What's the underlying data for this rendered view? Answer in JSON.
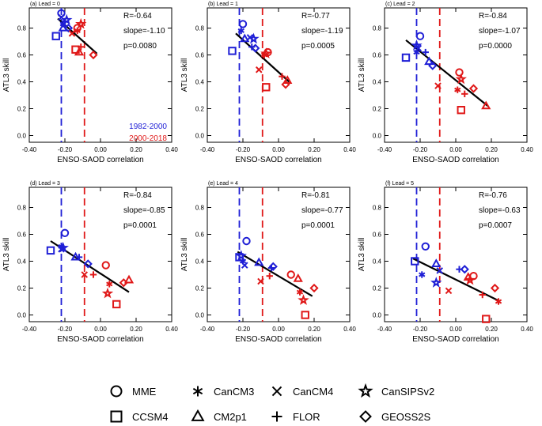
{
  "chart_data": [
    {
      "type": "scatter",
      "panel_label": "(a) Lead = 0",
      "xlabel": "ENSO-SAOD correlation",
      "ylabel": "ATL3 skill",
      "xlim": [
        -0.4,
        0.4
      ],
      "ylim": [
        -0.05,
        0.95
      ],
      "xticks": [
        "-0.40",
        "-0.20",
        "0.00",
        "0.20",
        "0.40"
      ],
      "yticks": [
        "0.0",
        "0.2",
        "0.4",
        "0.6",
        "0.8"
      ],
      "stats": {
        "r": "R=-0.64",
        "slope": "slope=-1.10",
        "p": "p=0.0080"
      },
      "period_labels": [
        "1982-2000",
        "2000-2018"
      ],
      "vlines": [
        -0.22,
        -0.09
      ],
      "fit_line": [
        [
          -0.24,
          0.87
        ],
        [
          -0.02,
          0.61
        ]
      ],
      "points": [
        {
          "model": "MME",
          "period": "1982-2000",
          "x": -0.22,
          "y": 0.91
        },
        {
          "model": "CanCM3",
          "period": "1982-2000",
          "x": -0.21,
          "y": 0.83
        },
        {
          "model": "CanCM4",
          "period": "1982-2000",
          "x": -0.22,
          "y": 0.88
        },
        {
          "model": "CanSIPSv2",
          "period": "1982-2000",
          "x": -0.19,
          "y": 0.86
        },
        {
          "model": "CCSM4",
          "period": "1982-2000",
          "x": -0.25,
          "y": 0.74
        },
        {
          "model": "CM2p1",
          "period": "1982-2000",
          "x": -0.21,
          "y": 0.8
        },
        {
          "model": "FLOR",
          "period": "1982-2000",
          "x": -0.2,
          "y": 0.85
        },
        {
          "model": "GEOSS2S",
          "period": "1982-2000",
          "x": -0.18,
          "y": 0.8
        },
        {
          "model": "MME",
          "period": "2000-2018",
          "x": -0.13,
          "y": 0.8
        },
        {
          "model": "CanCM3",
          "period": "2000-2018",
          "x": -0.13,
          "y": 0.78
        },
        {
          "model": "CanCM4",
          "period": "2000-2018",
          "x": -0.16,
          "y": 0.76
        },
        {
          "model": "CanSIPSv2",
          "period": "2000-2018",
          "x": -0.11,
          "y": 0.83
        },
        {
          "model": "CCSM4",
          "period": "2000-2018",
          "x": -0.14,
          "y": 0.64
        },
        {
          "model": "CM2p1",
          "period": "2000-2018",
          "x": -0.12,
          "y": 0.62
        },
        {
          "model": "FLOR",
          "period": "2000-2018",
          "x": -0.11,
          "y": 0.66
        },
        {
          "model": "GEOSS2S",
          "period": "2000-2018",
          "x": -0.04,
          "y": 0.6
        }
      ]
    },
    {
      "type": "scatter",
      "panel_label": "(b) Lead = 1",
      "xlabel": "ENSO-SAOD correlation",
      "ylabel": "ATL3 skill",
      "xlim": [
        -0.4,
        0.4
      ],
      "ylim": [
        -0.05,
        0.95
      ],
      "xticks": [
        "-0.40",
        "-0.20",
        "0.00",
        "0.20",
        "0.40"
      ],
      "yticks": [
        "0.0",
        "0.2",
        "0.4",
        "0.6",
        "0.8"
      ],
      "stats": {
        "r": "R=-0.77",
        "slope": "slope=-1.19",
        "p": "p=0.0005"
      },
      "period_labels": [],
      "vlines": [
        -0.22,
        -0.09
      ],
      "fit_line": [
        [
          -0.24,
          0.76
        ],
        [
          0.06,
          0.4
        ]
      ],
      "points": [
        {
          "model": "MME",
          "period": "1982-2000",
          "x": -0.2,
          "y": 0.83
        },
        {
          "model": "CanCM3",
          "period": "1982-2000",
          "x": -0.21,
          "y": 0.78
        },
        {
          "model": "CanCM4",
          "period": "1982-2000",
          "x": -0.16,
          "y": 0.73
        },
        {
          "model": "CanSIPSv2",
          "period": "1982-2000",
          "x": -0.14,
          "y": 0.72
        },
        {
          "model": "CCSM4",
          "period": "1982-2000",
          "x": -0.26,
          "y": 0.63
        },
        {
          "model": "CM2p1",
          "period": "1982-2000",
          "x": -0.19,
          "y": 0.72
        },
        {
          "model": "FLOR",
          "period": "1982-2000",
          "x": -0.15,
          "y": 0.66
        },
        {
          "model": "GEOSS2S",
          "period": "1982-2000",
          "x": -0.13,
          "y": 0.65
        },
        {
          "model": "MME",
          "period": "2000-2018",
          "x": -0.06,
          "y": 0.62
        },
        {
          "model": "CanCM3",
          "period": "2000-2018",
          "x": -0.08,
          "y": 0.6
        },
        {
          "model": "CanCM4",
          "period": "2000-2018",
          "x": -0.11,
          "y": 0.49
        },
        {
          "model": "CanSIPSv2",
          "period": "2000-2018",
          "x": -0.07,
          "y": 0.61
        },
        {
          "model": "CCSM4",
          "period": "2000-2018",
          "x": -0.07,
          "y": 0.36
        },
        {
          "model": "CM2p1",
          "period": "2000-2018",
          "x": 0.05,
          "y": 0.41
        },
        {
          "model": "FLOR",
          "period": "2000-2018",
          "x": 0.02,
          "y": 0.44
        },
        {
          "model": "GEOSS2S",
          "period": "2000-2018",
          "x": 0.04,
          "y": 0.38
        }
      ]
    },
    {
      "type": "scatter",
      "panel_label": "(c) Lead = 2",
      "xlabel": "ENSO-SAOD correlation",
      "ylabel": "ATL3 skill",
      "xlim": [
        -0.4,
        0.4
      ],
      "ylim": [
        -0.05,
        0.95
      ],
      "xticks": [
        "-0.40",
        "-0.20",
        "0.00",
        "0.20",
        "0.40"
      ],
      "yticks": [
        "0.0",
        "0.2",
        "0.4",
        "0.6",
        "0.8"
      ],
      "stats": {
        "r": "R=-0.84",
        "slope": "slope=-1.07",
        "p": "p=0.0000"
      },
      "period_labels": [],
      "vlines": [
        -0.22,
        -0.09
      ],
      "fit_line": [
        [
          -0.28,
          0.71
        ],
        [
          0.18,
          0.22
        ]
      ],
      "points": [
        {
          "model": "MME",
          "period": "1982-2000",
          "x": -0.2,
          "y": 0.74
        },
        {
          "model": "CanCM3",
          "period": "1982-2000",
          "x": -0.22,
          "y": 0.62
        },
        {
          "model": "CanCM4",
          "period": "1982-2000",
          "x": -0.21,
          "y": 0.65
        },
        {
          "model": "CanSIPSv2",
          "period": "1982-2000",
          "x": -0.22,
          "y": 0.67
        },
        {
          "model": "CCSM4",
          "period": "1982-2000",
          "x": -0.28,
          "y": 0.58
        },
        {
          "model": "CM2p1",
          "period": "1982-2000",
          "x": -0.15,
          "y": 0.55
        },
        {
          "model": "FLOR",
          "period": "1982-2000",
          "x": -0.17,
          "y": 0.62
        },
        {
          "model": "GEOSS2S",
          "period": "1982-2000",
          "x": -0.13,
          "y": 0.52
        },
        {
          "model": "MME",
          "period": "2000-2018",
          "x": 0.02,
          "y": 0.47
        },
        {
          "model": "CanCM3",
          "period": "2000-2018",
          "x": 0.01,
          "y": 0.34
        },
        {
          "model": "CanCM4",
          "period": "2000-2018",
          "x": -0.1,
          "y": 0.37
        },
        {
          "model": "CanSIPSv2",
          "period": "2000-2018",
          "x": 0.03,
          "y": 0.42
        },
        {
          "model": "CCSM4",
          "period": "2000-2018",
          "x": 0.03,
          "y": 0.19
        },
        {
          "model": "CM2p1",
          "period": "2000-2018",
          "x": 0.17,
          "y": 0.22
        },
        {
          "model": "FLOR",
          "period": "2000-2018",
          "x": 0.05,
          "y": 0.31
        },
        {
          "model": "GEOSS2S",
          "period": "2000-2018",
          "x": 0.1,
          "y": 0.35
        }
      ]
    },
    {
      "type": "scatter",
      "panel_label": "(d) Lead = 3",
      "xlabel": "ENSO-SAOD correlation",
      "ylabel": "ATL3 skill",
      "xlim": [
        -0.4,
        0.4
      ],
      "ylim": [
        -0.05,
        0.95
      ],
      "xticks": [
        "-0.40",
        "-0.20",
        "0.00",
        "0.20",
        "0.40"
      ],
      "yticks": [
        "0.0",
        "0.2",
        "0.4",
        "0.6",
        "0.8"
      ],
      "stats": {
        "r": "R=-0.84",
        "slope": "slope=-0.85",
        "p": "p=0.0001"
      },
      "period_labels": [],
      "vlines": [
        -0.22,
        -0.09
      ],
      "fit_line": [
        [
          -0.28,
          0.55
        ],
        [
          0.16,
          0.17
        ]
      ],
      "points": [
        {
          "model": "MME",
          "period": "1982-2000",
          "x": -0.2,
          "y": 0.61
        },
        {
          "model": "CanCM3",
          "period": "1982-2000",
          "x": -0.22,
          "y": 0.51
        },
        {
          "model": "CanCM4",
          "period": "1982-2000",
          "x": -0.22,
          "y": 0.49
        },
        {
          "model": "CanSIPSv2",
          "period": "1982-2000",
          "x": -0.21,
          "y": 0.5
        },
        {
          "model": "CCSM4",
          "period": "1982-2000",
          "x": -0.28,
          "y": 0.48
        },
        {
          "model": "CM2p1",
          "period": "1982-2000",
          "x": -0.14,
          "y": 0.43
        },
        {
          "model": "FLOR",
          "period": "1982-2000",
          "x": -0.12,
          "y": 0.43
        },
        {
          "model": "GEOSS2S",
          "period": "1982-2000",
          "x": -0.07,
          "y": 0.38
        },
        {
          "model": "MME",
          "period": "2000-2018",
          "x": 0.03,
          "y": 0.37
        },
        {
          "model": "CanCM3",
          "period": "2000-2018",
          "x": 0.05,
          "y": 0.23
        },
        {
          "model": "CanCM4",
          "period": "2000-2018",
          "x": -0.09,
          "y": 0.3
        },
        {
          "model": "CanSIPSv2",
          "period": "2000-2018",
          "x": 0.04,
          "y": 0.16
        },
        {
          "model": "CCSM4",
          "period": "2000-2018",
          "x": 0.09,
          "y": 0.08
        },
        {
          "model": "CM2p1",
          "period": "2000-2018",
          "x": 0.16,
          "y": 0.26
        },
        {
          "model": "FLOR",
          "period": "2000-2018",
          "x": -0.04,
          "y": 0.3
        },
        {
          "model": "GEOSS2S",
          "period": "2000-2018",
          "x": 0.13,
          "y": 0.24
        }
      ]
    },
    {
      "type": "scatter",
      "panel_label": "(e) Lead = 4",
      "xlabel": "ENSO-SAOD correlation",
      "ylabel": "ATL3 skill",
      "xlim": [
        -0.4,
        0.4
      ],
      "ylim": [
        -0.05,
        0.95
      ],
      "xticks": [
        "-0.40",
        "-0.20",
        "0.00",
        "0.20",
        "0.40"
      ],
      "yticks": [
        "0.0",
        "0.2",
        "0.4",
        "0.6",
        "0.8"
      ],
      "stats": {
        "r": "R=-0.81",
        "slope": "slope=-0.77",
        "p": "p=0.0001"
      },
      "period_labels": [],
      "vlines": [
        -0.22,
        -0.09
      ],
      "fit_line": [
        [
          -0.23,
          0.47
        ],
        [
          0.19,
          0.14
        ]
      ],
      "points": [
        {
          "model": "MME",
          "period": "1982-2000",
          "x": -0.18,
          "y": 0.55
        },
        {
          "model": "CanCM3",
          "period": "1982-2000",
          "x": -0.2,
          "y": 0.4
        },
        {
          "model": "CanCM4",
          "period": "1982-2000",
          "x": -0.19,
          "y": 0.37
        },
        {
          "model": "CanSIPSv2",
          "period": "1982-2000",
          "x": -0.21,
          "y": 0.44
        },
        {
          "model": "CCSM4",
          "period": "1982-2000",
          "x": -0.22,
          "y": 0.43
        },
        {
          "model": "CM2p1",
          "period": "1982-2000",
          "x": -0.11,
          "y": 0.39
        },
        {
          "model": "FLOR",
          "period": "1982-2000",
          "x": -0.04,
          "y": 0.35
        },
        {
          "model": "GEOSS2S",
          "period": "1982-2000",
          "x": -0.03,
          "y": 0.36
        },
        {
          "model": "MME",
          "period": "2000-2018",
          "x": 0.07,
          "y": 0.3
        },
        {
          "model": "CanCM3",
          "period": "2000-2018",
          "x": 0.12,
          "y": 0.17
        },
        {
          "model": "CanCM4",
          "period": "2000-2018",
          "x": -0.1,
          "y": 0.25
        },
        {
          "model": "CanSIPSv2",
          "period": "2000-2018",
          "x": 0.14,
          "y": 0.11
        },
        {
          "model": "CCSM4",
          "period": "2000-2018",
          "x": 0.15,
          "y": 0.0
        },
        {
          "model": "CM2p1",
          "period": "2000-2018",
          "x": 0.11,
          "y": 0.27
        },
        {
          "model": "FLOR",
          "period": "2000-2018",
          "x": -0.05,
          "y": 0.29
        },
        {
          "model": "GEOSS2S",
          "period": "2000-2018",
          "x": 0.2,
          "y": 0.2
        }
      ]
    },
    {
      "type": "scatter",
      "panel_label": "(f) Lead = 5",
      "xlabel": "ENSO-SAOD correlation",
      "ylabel": "ATL3 skill",
      "xlim": [
        -0.4,
        0.4
      ],
      "ylim": [
        -0.05,
        0.95
      ],
      "xticks": [
        "-0.40",
        "-0.20",
        "0.00",
        "0.20",
        "0.40"
      ],
      "yticks": [
        "0.0",
        "0.2",
        "0.4",
        "0.6",
        "0.8"
      ],
      "stats": {
        "r": "R=-0.76",
        "slope": "slope=-0.63",
        "p": "p=0.0007"
      },
      "period_labels": [],
      "vlines": [
        -0.22,
        -0.09
      ],
      "fit_line": [
        [
          -0.24,
          0.42
        ],
        [
          0.25,
          0.1
        ]
      ],
      "points": [
        {
          "model": "MME",
          "period": "1982-2000",
          "x": -0.17,
          "y": 0.51
        },
        {
          "model": "CanCM3",
          "period": "1982-2000",
          "x": -0.19,
          "y": 0.3
        },
        {
          "model": "CanCM4",
          "period": "1982-2000",
          "x": -0.09,
          "y": 0.33
        },
        {
          "model": "CanSIPSv2",
          "period": "1982-2000",
          "x": -0.11,
          "y": 0.24
        },
        {
          "model": "CCSM4",
          "period": "1982-2000",
          "x": -0.23,
          "y": 0.4
        },
        {
          "model": "CM2p1",
          "period": "1982-2000",
          "x": -0.11,
          "y": 0.38
        },
        {
          "model": "FLOR",
          "period": "1982-2000",
          "x": 0.02,
          "y": 0.34
        },
        {
          "model": "GEOSS2S",
          "period": "1982-2000",
          "x": 0.05,
          "y": 0.34
        },
        {
          "model": "MME",
          "period": "2000-2018",
          "x": 0.1,
          "y": 0.29
        },
        {
          "model": "CanCM3",
          "period": "2000-2018",
          "x": 0.24,
          "y": 0.1
        },
        {
          "model": "CanCM4",
          "period": "2000-2018",
          "x": -0.04,
          "y": 0.18
        },
        {
          "model": "CanSIPSv2",
          "period": "2000-2018",
          "x": 0.08,
          "y": 0.26
        },
        {
          "model": "CCSM4",
          "period": "2000-2018",
          "x": 0.17,
          "y": -0.03
        },
        {
          "model": "CM2p1",
          "period": "2000-2018",
          "x": 0.07,
          "y": 0.28
        },
        {
          "model": "FLOR",
          "period": "2000-2018",
          "x": 0.15,
          "y": 0.15
        },
        {
          "model": "GEOSS2S",
          "period": "2000-2018",
          "x": 0.22,
          "y": 0.2
        }
      ]
    }
  ],
  "legend": {
    "entries": [
      {
        "model": "MME",
        "label": "MME"
      },
      {
        "model": "CanCM3",
        "label": "CanCM3"
      },
      {
        "model": "CanCM4",
        "label": "CanCM4"
      },
      {
        "model": "CanSIPSv2",
        "label": "CanSIPSv2"
      },
      {
        "model": "CCSM4",
        "label": "CCSM4"
      },
      {
        "model": "CM2p1",
        "label": "CM2p1"
      },
      {
        "model": "FLOR",
        "label": "FLOR"
      },
      {
        "model": "GEOSS2S",
        "label": "GEOSS2S"
      }
    ]
  },
  "colors": {
    "period_1982_2000": "#1f1fd6",
    "period_2000_2018": "#e01818",
    "axis": "#000000",
    "fit_line": "#000000"
  }
}
